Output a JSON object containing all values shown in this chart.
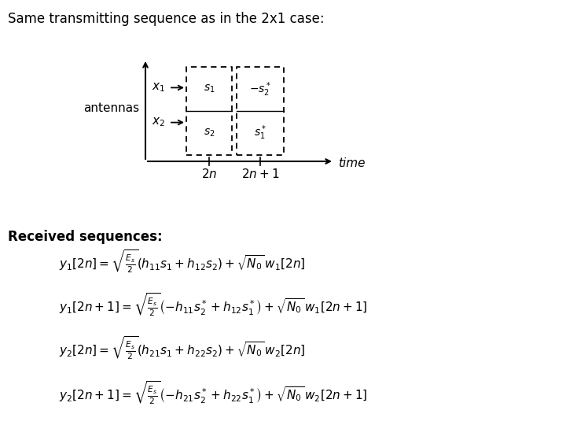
{
  "title_text": "Same transmitting sequence as in the 2x1 case:",
  "received_label": "Received sequences:",
  "antennas_label": "antennas",
  "time_label": "time",
  "background_color": "#ffffff",
  "text_color": "#000000",
  "eq1": "$y_1[2n]=\\sqrt{\\frac{E_s}{2}}\\left(h_{11}s_1+h_{12}s_2\\right)+\\sqrt{N_0}\\,w_1[2n]$",
  "eq2": "$y_1[2n+1]=\\sqrt{\\frac{E_s}{2}}\\left(-h_{11}s_2^*+h_{12}s_1^*\\right)+\\sqrt{N_0}\\,w_1[2n+1]$",
  "eq3": "$y_2[2n]=\\sqrt{\\frac{E_s}{2}}\\left(h_{21}s_1+h_{22}s_2\\right)+\\sqrt{N_0}\\,w_2[2n]$",
  "eq4": "$y_2[2n+1]=\\sqrt{\\frac{E_s}{2}}\\left(-h_{21}s_2^*+h_{22}s_1^*\\right)+\\sqrt{N_0}\\,w_2[2n+1]$",
  "title_fontsize": 12,
  "label_fontsize": 11,
  "eq_fontsize": 11,
  "received_fontsize": 12,
  "diagram_label_fontsize": 11,
  "inner_fontsize": 10
}
